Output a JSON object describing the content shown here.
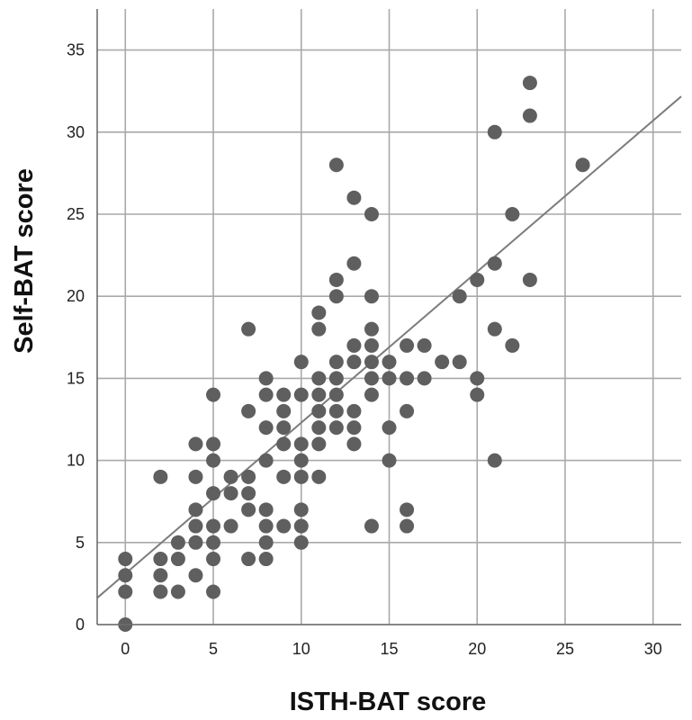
{
  "colors": {
    "point": "#5f5f5f",
    "grid": "#a9a9a9",
    "frame": "#6e6e6e",
    "fit_line": "#7c7c7c",
    "background": "#ffffff"
  },
  "chart_data": {
    "type": "scatter",
    "xlabel": "ISTH-BAT score",
    "ylabel": "Self-BAT score",
    "xlim": [
      -1.6,
      31.6
    ],
    "ylim": [
      0,
      37.5
    ],
    "xticks": [
      0,
      5,
      10,
      15,
      20,
      25,
      30
    ],
    "yticks": [
      0,
      5,
      10,
      15,
      20,
      25,
      30,
      35
    ],
    "grid": true,
    "legend": "none",
    "fit_line": {
      "intercept": 3.1,
      "slope": 0.92
    },
    "points": [
      [
        0,
        0
      ],
      [
        0,
        2
      ],
      [
        0,
        3
      ],
      [
        0,
        4
      ],
      [
        2,
        2
      ],
      [
        2,
        3
      ],
      [
        2,
        4
      ],
      [
        2,
        9
      ],
      [
        3,
        2
      ],
      [
        3,
        4
      ],
      [
        3,
        5
      ],
      [
        4,
        3
      ],
      [
        4,
        5
      ],
      [
        4,
        6
      ],
      [
        4,
        7
      ],
      [
        4,
        9
      ],
      [
        4,
        11
      ],
      [
        5,
        2
      ],
      [
        5,
        4
      ],
      [
        5,
        5
      ],
      [
        5,
        6
      ],
      [
        5,
        8
      ],
      [
        5,
        10
      ],
      [
        5,
        11
      ],
      [
        5,
        14
      ],
      [
        6,
        6
      ],
      [
        6,
        8
      ],
      [
        6,
        9
      ],
      [
        7,
        4
      ],
      [
        7,
        7
      ],
      [
        7,
        8
      ],
      [
        7,
        9
      ],
      [
        7,
        13
      ],
      [
        7,
        18
      ],
      [
        8,
        4
      ],
      [
        8,
        5
      ],
      [
        8,
        6
      ],
      [
        8,
        7
      ],
      [
        8,
        10
      ],
      [
        8,
        12
      ],
      [
        8,
        14
      ],
      [
        8,
        15
      ],
      [
        9,
        6
      ],
      [
        9,
        9
      ],
      [
        9,
        11
      ],
      [
        9,
        12
      ],
      [
        9,
        13
      ],
      [
        9,
        14
      ],
      [
        10,
        5
      ],
      [
        10,
        6
      ],
      [
        10,
        7
      ],
      [
        10,
        9
      ],
      [
        10,
        10
      ],
      [
        10,
        11
      ],
      [
        10,
        14
      ],
      [
        10,
        16
      ],
      [
        11,
        9
      ],
      [
        11,
        11
      ],
      [
        11,
        12
      ],
      [
        11,
        13
      ],
      [
        11,
        14
      ],
      [
        11,
        15
      ],
      [
        11,
        18
      ],
      [
        11,
        19
      ],
      [
        12,
        12
      ],
      [
        12,
        13
      ],
      [
        12,
        14
      ],
      [
        12,
        15
      ],
      [
        12,
        16
      ],
      [
        12,
        20
      ],
      [
        12,
        21
      ],
      [
        12,
        28
      ],
      [
        13,
        11
      ],
      [
        13,
        12
      ],
      [
        13,
        13
      ],
      [
        13,
        16
      ],
      [
        13,
        17
      ],
      [
        13,
        22
      ],
      [
        13,
        26
      ],
      [
        14,
        6
      ],
      [
        14,
        14
      ],
      [
        14,
        15
      ],
      [
        14,
        16
      ],
      [
        14,
        17
      ],
      [
        14,
        18
      ],
      [
        14,
        20
      ],
      [
        14,
        25
      ],
      [
        15,
        10
      ],
      [
        15,
        12
      ],
      [
        15,
        15
      ],
      [
        15,
        16
      ],
      [
        16,
        6
      ],
      [
        16,
        7
      ],
      [
        16,
        13
      ],
      [
        16,
        15
      ],
      [
        16,
        17
      ],
      [
        17,
        15
      ],
      [
        17,
        17
      ],
      [
        18,
        16
      ],
      [
        19,
        16
      ],
      [
        19,
        20
      ],
      [
        20,
        14
      ],
      [
        20,
        15
      ],
      [
        20,
        21
      ],
      [
        21,
        10
      ],
      [
        21,
        18
      ],
      [
        21,
        22
      ],
      [
        21,
        30
      ],
      [
        22,
        17
      ],
      [
        22,
        25
      ],
      [
        23,
        21
      ],
      [
        23,
        31
      ],
      [
        23,
        33
      ],
      [
        26,
        28
      ]
    ]
  }
}
